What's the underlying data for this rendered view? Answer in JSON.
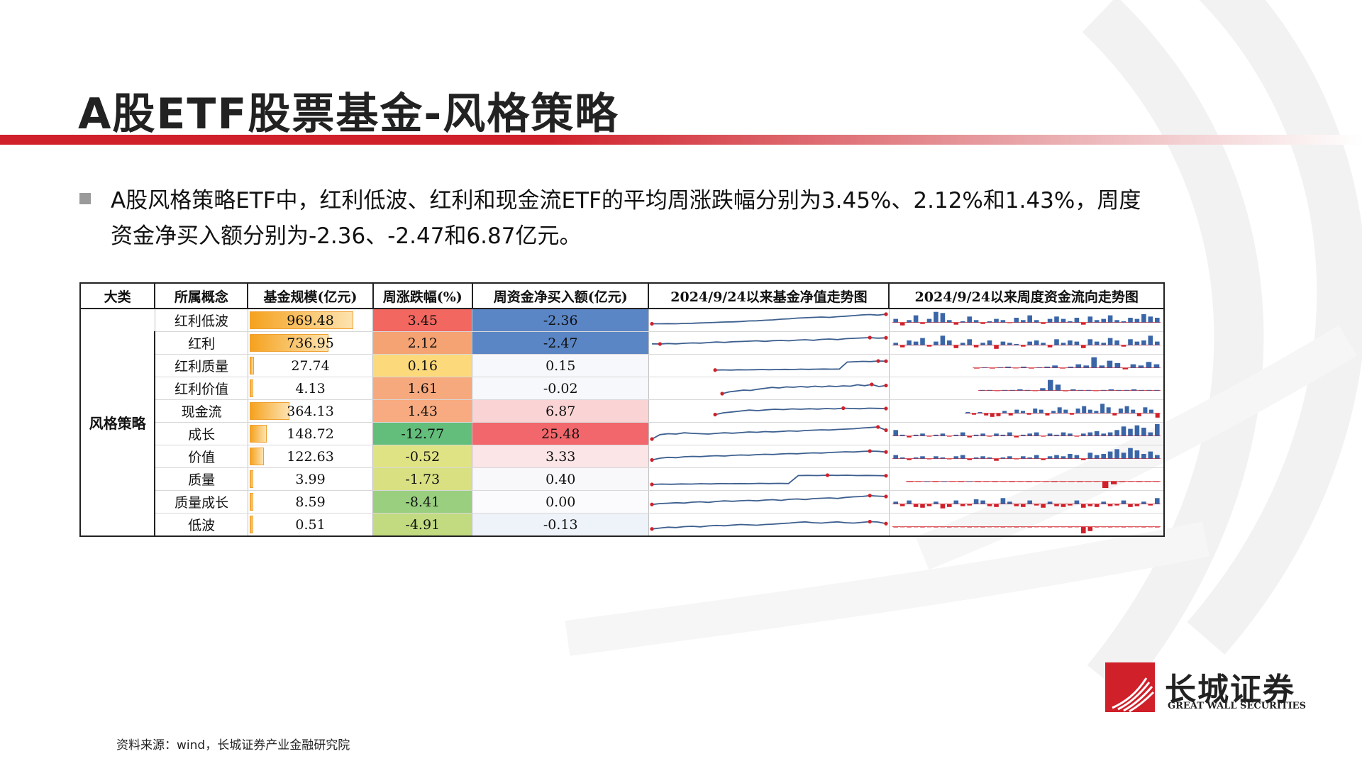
{
  "title": "A股ETF股票基金-风格策略",
  "bullet": "A股风格策略ETF中，红利低波、红利和现金流ETF的平均周涨跌幅分别为3.45%、2.12%和1.43%，周度资金净买入额分别为-2.36、-2.47和6.87亿元。",
  "table": {
    "headers": [
      "大类",
      "所属概念",
      "基金规模(亿元)",
      "周涨跌幅(%)",
      "周资金净买入额(亿元)",
      "2024/9/24以来基金净值走势图",
      "2024/9/24以来周度资金流向走势图"
    ],
    "category": "风格策略",
    "rows": [
      {
        "concept": "红利低波",
        "size": "969.48",
        "size_val": 969.48,
        "change": "3.45",
        "flow": "-2.36",
        "change_color": "#f2675f",
        "flow_color": "#5b86c5",
        "nav": [
          0.3,
          0.3,
          0.31,
          0.3,
          0.32,
          0.33,
          0.35,
          0.36,
          0.38,
          0.4,
          0.41,
          0.43,
          0.46,
          0.47,
          0.5,
          0.52,
          0.56,
          0.58,
          0.62,
          0.64,
          0.66,
          0.68,
          0.66,
          0.7,
          0.73,
          0.76,
          0.8,
          0.82,
          0.79,
          0.84
        ],
        "nav_start": 0,
        "flows": [
          0.3,
          -0.4,
          0.2,
          0.6,
          -0.2,
          0.3,
          0.9,
          0.8,
          0.2,
          -0.3,
          0.1,
          0.5,
          0.2,
          -0.2,
          0.1,
          0.3,
          0.2,
          -0.1,
          0.4,
          0.2,
          0.6,
          0.2,
          -0.2,
          0.3,
          0.5,
          0.3,
          0.1,
          0.4,
          -0.3,
          0.5,
          0.2,
          0.3,
          0.6,
          0.2,
          0.1,
          0.4,
          0.3,
          0.7,
          0.5,
          0.4
        ],
        "flow_start": 0
      },
      {
        "concept": "红利",
        "size": "736.95",
        "size_val": 736.95,
        "change": "2.12",
        "flow": "-2.47",
        "change_color": "#f5a373",
        "flow_color": "#5b86c5",
        "nav": [
          0.45,
          0.44,
          0.47,
          0.45,
          0.48,
          0.5,
          0.49,
          0.52,
          0.55,
          0.53,
          0.57,
          0.58,
          0.6,
          0.62,
          0.59,
          0.63,
          0.64,
          0.62,
          0.66,
          0.68,
          0.65,
          0.7,
          0.72,
          0.69,
          0.74,
          0.76,
          0.78,
          0.8,
          0.77,
          0.79
        ],
        "nav_start": 0,
        "flows": [
          0.2,
          -0.3,
          0.4,
          0.3,
          0.6,
          -0.2,
          0.3,
          0.8,
          0.4,
          -0.4,
          0.2,
          0.5,
          -0.3,
          0.2,
          0.4,
          -0.5,
          0.3,
          0.2,
          0.1,
          -0.2,
          0.3,
          0.4,
          0.2,
          -0.3,
          0.5,
          0.2,
          0.4,
          0.3,
          -0.4,
          0.5,
          0.3,
          0.2,
          0.6,
          0.4,
          -0.2,
          0.5,
          0.3,
          0.4,
          0.8,
          0.3
        ],
        "flow_start": 0
      },
      {
        "concept": "红利质量",
        "size": "27.74",
        "size_val": 27.74,
        "change": "0.16",
        "flow": "0.15",
        "change_color": "#fcd97a",
        "flow_color": "#f7f8fb",
        "nav": [
          0.25,
          0.26,
          0.25,
          0.27,
          0.26,
          0.27,
          0.28,
          0.27,
          0.28,
          0.29,
          0.28,
          0.3,
          0.29,
          0.3,
          0.31,
          0.3,
          0.31,
          0.7,
          0.72,
          0.74,
          0.73,
          0.76,
          0.75
        ],
        "nav_start": 0.27,
        "flows": [
          -0.1,
          0.05,
          -0.1,
          0.05,
          0.1,
          -0.05,
          0.1,
          -0.1,
          0.05,
          0.1,
          0.2,
          -0.1,
          0.1,
          0.3,
          0.2,
          0.9,
          0.2,
          0.6,
          0.4,
          -0.2,
          0.3,
          0.2,
          0.5,
          0.3
        ],
        "flow_start": 0.3
      },
      {
        "concept": "红利价值",
        "size": "4.13",
        "size_val": 4.13,
        "change": "1.61",
        "flow": "-0.02",
        "change_color": "#f7a97e",
        "flow_color": "#f7f8fb",
        "nav": [
          0.2,
          0.3,
          0.35,
          0.4,
          0.38,
          0.45,
          0.5,
          0.55,
          0.52,
          0.58,
          0.56,
          0.6,
          0.57,
          0.62,
          0.58,
          0.63,
          0.6,
          0.64,
          0.62,
          0.7,
          0.65,
          0.72,
          0.6,
          0.66
        ],
        "nav_start": 0.3,
        "flows": [
          0.05,
          0.05,
          -0.05,
          0.05,
          0.05,
          0.1,
          0.05,
          -0.05,
          0.2,
          0.9,
          0.5,
          -0.1,
          0.1,
          0.05,
          0.05,
          -0.05,
          0.05,
          0.1,
          0.05,
          0.05,
          0.1,
          0.05,
          0.05,
          0.05
        ],
        "flow_start": 0.32
      },
      {
        "concept": "现金流",
        "size": "364.13",
        "size_val": 364.13,
        "change": "1.43",
        "flow": "6.87",
        "change_color": "#f8ab80",
        "flow_color": "#fad3d5",
        "nav": [
          0.3,
          0.4,
          0.45,
          0.5,
          0.55,
          0.52,
          0.57,
          0.6,
          0.58,
          0.62,
          0.6,
          0.63,
          0.61,
          0.64,
          0.62,
          0.66,
          0.64,
          0.63,
          0.66,
          0.65,
          0.64
        ],
        "nav_start": 0.27,
        "flows": [
          0.1,
          -0.2,
          0.1,
          -0.3,
          -0.5,
          -0.4,
          0.2,
          -0.3,
          0.3,
          0.2,
          -0.2,
          0.4,
          0.3,
          -0.3,
          0.2,
          0.5,
          0.3,
          -0.2,
          0.4,
          0.6,
          0.3,
          0.2,
          0.8,
          0.5,
          -0.3,
          0.4,
          0.6,
          0.3,
          -0.4,
          0.5,
          0.3,
          -0.6
        ],
        "flow_start": 0.27
      },
      {
        "concept": "成长",
        "size": "148.72",
        "size_val": 148.72,
        "change": "-12.77",
        "flow": "25.48",
        "change_color": "#63be7b",
        "flow_color": "#f2676b",
        "nav": [
          0.2,
          0.45,
          0.5,
          0.48,
          0.55,
          0.52,
          0.5,
          0.48,
          0.52,
          0.55,
          0.53,
          0.56,
          0.6,
          0.58,
          0.62,
          0.6,
          0.63,
          0.66,
          0.64,
          0.68,
          0.7,
          0.72,
          0.71,
          0.74,
          0.76,
          0.78,
          0.82,
          0.85,
          0.88,
          0.7
        ],
        "nav_start": 0,
        "flows": [
          0.5,
          0.1,
          -0.2,
          0.1,
          0.2,
          -0.1,
          0.1,
          0.2,
          -0.1,
          0.1,
          0.3,
          -0.2,
          0.1,
          0.2,
          -0.1,
          0.2,
          0.1,
          0.3,
          -0.2,
          0.1,
          0.2,
          0.3,
          -0.1,
          0.2,
          0.1,
          0.3,
          0.2,
          -0.1,
          0.2,
          0.3,
          0.4,
          0.2,
          0.3,
          0.5,
          0.8,
          0.6,
          0.9,
          0.7,
          0.3,
          1.0
        ],
        "flow_start": 0
      },
      {
        "concept": "价值",
        "size": "122.63",
        "size_val": 122.63,
        "change": "-0.52",
        "flow": "3.33",
        "change_color": "#e0e383",
        "flow_color": "#fbe5e7",
        "nav": [
          0.3,
          0.4,
          0.45,
          0.43,
          0.48,
          0.5,
          0.49,
          0.52,
          0.54,
          0.52,
          0.56,
          0.58,
          0.57,
          0.6,
          0.62,
          0.61,
          0.64,
          0.66,
          0.65,
          0.68,
          0.7,
          0.69,
          0.72,
          0.74,
          0.76,
          0.75,
          0.78,
          0.8,
          0.79,
          0.75
        ],
        "nav_start": 0,
        "flows": [
          0.3,
          0.1,
          -0.2,
          0.1,
          0.2,
          -0.1,
          0.2,
          0.1,
          -0.1,
          0.2,
          0.3,
          -0.2,
          0.1,
          0.2,
          0.1,
          -0.3,
          0.1,
          0.2,
          -0.1,
          0.2,
          0.1,
          0.3,
          -0.2,
          0.2,
          0.3,
          0.2,
          0.4,
          0.3,
          -0.2,
          0.5,
          0.3,
          0.4,
          0.6,
          0.8,
          0.5,
          0.9,
          0.7,
          0.4,
          0.6,
          0.3
        ],
        "flow_start": 0
      },
      {
        "concept": "质量",
        "size": "3.99",
        "size_val": 3.99,
        "change": "-1.73",
        "flow": "0.40",
        "change_color": "#d8e082",
        "flow_color": "#f8f8fb",
        "nav": [
          0.2,
          0.22,
          0.21,
          0.23,
          0.22,
          0.24,
          0.23,
          0.25,
          0.24,
          0.25,
          0.24,
          0.26,
          0.25,
          0.26,
          0.25,
          0.7,
          0.71,
          0.7,
          0.72,
          0.71,
          0.72,
          0.7,
          0.71,
          0.7,
          0.69
        ],
        "nav_start": 0,
        "flows": [
          -0.1,
          -0.05,
          0,
          -0.1,
          0,
          -0.05,
          -0.1,
          0,
          -0.1,
          -0.05,
          -0.1,
          -0.05,
          -0.1,
          -0.05,
          -0.1,
          -0.05,
          -0.05,
          -0.1,
          -0.05,
          -0.05,
          -0.1,
          -0.05,
          -0.05,
          -0.9,
          -0.4,
          -0.1,
          -0.05,
          -0.1,
          -0.05,
          -0.05
        ],
        "flow_start": 0.05
      },
      {
        "concept": "质量成长",
        "size": "8.59",
        "size_val": 8.59,
        "change": "-8.41",
        "flow": "0.00",
        "change_color": "#99cf7e",
        "flow_color": "#fbfbfd",
        "nav": [
          0.35,
          0.4,
          0.42,
          0.45,
          0.43,
          0.48,
          0.5,
          0.47,
          0.52,
          0.55,
          0.53,
          0.56,
          0.58,
          0.55,
          0.6,
          0.62,
          0.58,
          0.64,
          0.66,
          0.63,
          0.68,
          0.7,
          0.72,
          0.69,
          0.75,
          0.78,
          0.8,
          0.85,
          0.82,
          0.8
        ],
        "nav_start": 0,
        "flows": [
          0.2,
          -0.3,
          0.3,
          -0.4,
          -0.5,
          -0.3,
          0.2,
          -0.6,
          -0.4,
          0.3,
          -0.3,
          -0.2,
          0.4,
          0.3,
          -0.3,
          -0.4,
          0.5,
          0.2,
          -0.3,
          -0.4,
          0.3,
          -0.2,
          -0.5,
          0.2,
          -0.3,
          -0.4,
          -0.2,
          0.3,
          -0.5,
          -0.3,
          -0.4,
          0.2,
          -0.3,
          -0.2,
          0.3,
          -0.4,
          -0.3,
          0.2,
          -0.2,
          0.5
        ],
        "flow_start": 0
      },
      {
        "concept": "低波",
        "size": "0.51",
        "size_val": 0.51,
        "change": "-4.91",
        "flow": "-0.13",
        "change_color": "#c2db80",
        "flow_color": "#eef2f9",
        "nav": [
          0.25,
          0.3,
          0.35,
          0.33,
          0.38,
          0.4,
          0.37,
          0.42,
          0.45,
          0.43,
          0.47,
          0.5,
          0.48,
          0.46,
          0.5,
          0.52,
          0.55,
          0.58,
          0.62,
          0.65,
          0.6,
          0.58,
          0.62,
          0.65,
          0.6,
          0.58,
          0.62,
          0.66,
          0.64,
          0.55
        ],
        "nav_start": 0,
        "flows": [
          -0.1,
          -0.05,
          -0.1,
          -0.05,
          -0.1,
          -0.05,
          -0.1,
          -0.05,
          -0.1,
          -0.05,
          -0.05,
          -0.1,
          -0.05,
          -0.1,
          -0.05,
          -0.05,
          -0.1,
          -0.05,
          -0.1,
          -0.05,
          -0.1,
          -0.05,
          -0.05,
          -0.1,
          -0.05,
          -0.05,
          -0.1,
          -0.05,
          -0.9,
          -0.6,
          -0.1,
          -0.05,
          -0.1,
          -0.05,
          -0.1,
          -0.05,
          -0.05,
          -0.1,
          -0.05,
          -0.1
        ],
        "flow_start": 0
      }
    ]
  },
  "source": "资料来源：wind，长城证券产业金融研究院",
  "logo": {
    "cn": "长城证券",
    "en": "GREAT WALL SECURITIES"
  },
  "colors": {
    "brand_red": "#d0202a",
    "nav_line": "#3c5f8f",
    "flow_pos": "#3a66a8",
    "flow_neg": "#d0202a",
    "size_bar": "#f5a21e"
  }
}
